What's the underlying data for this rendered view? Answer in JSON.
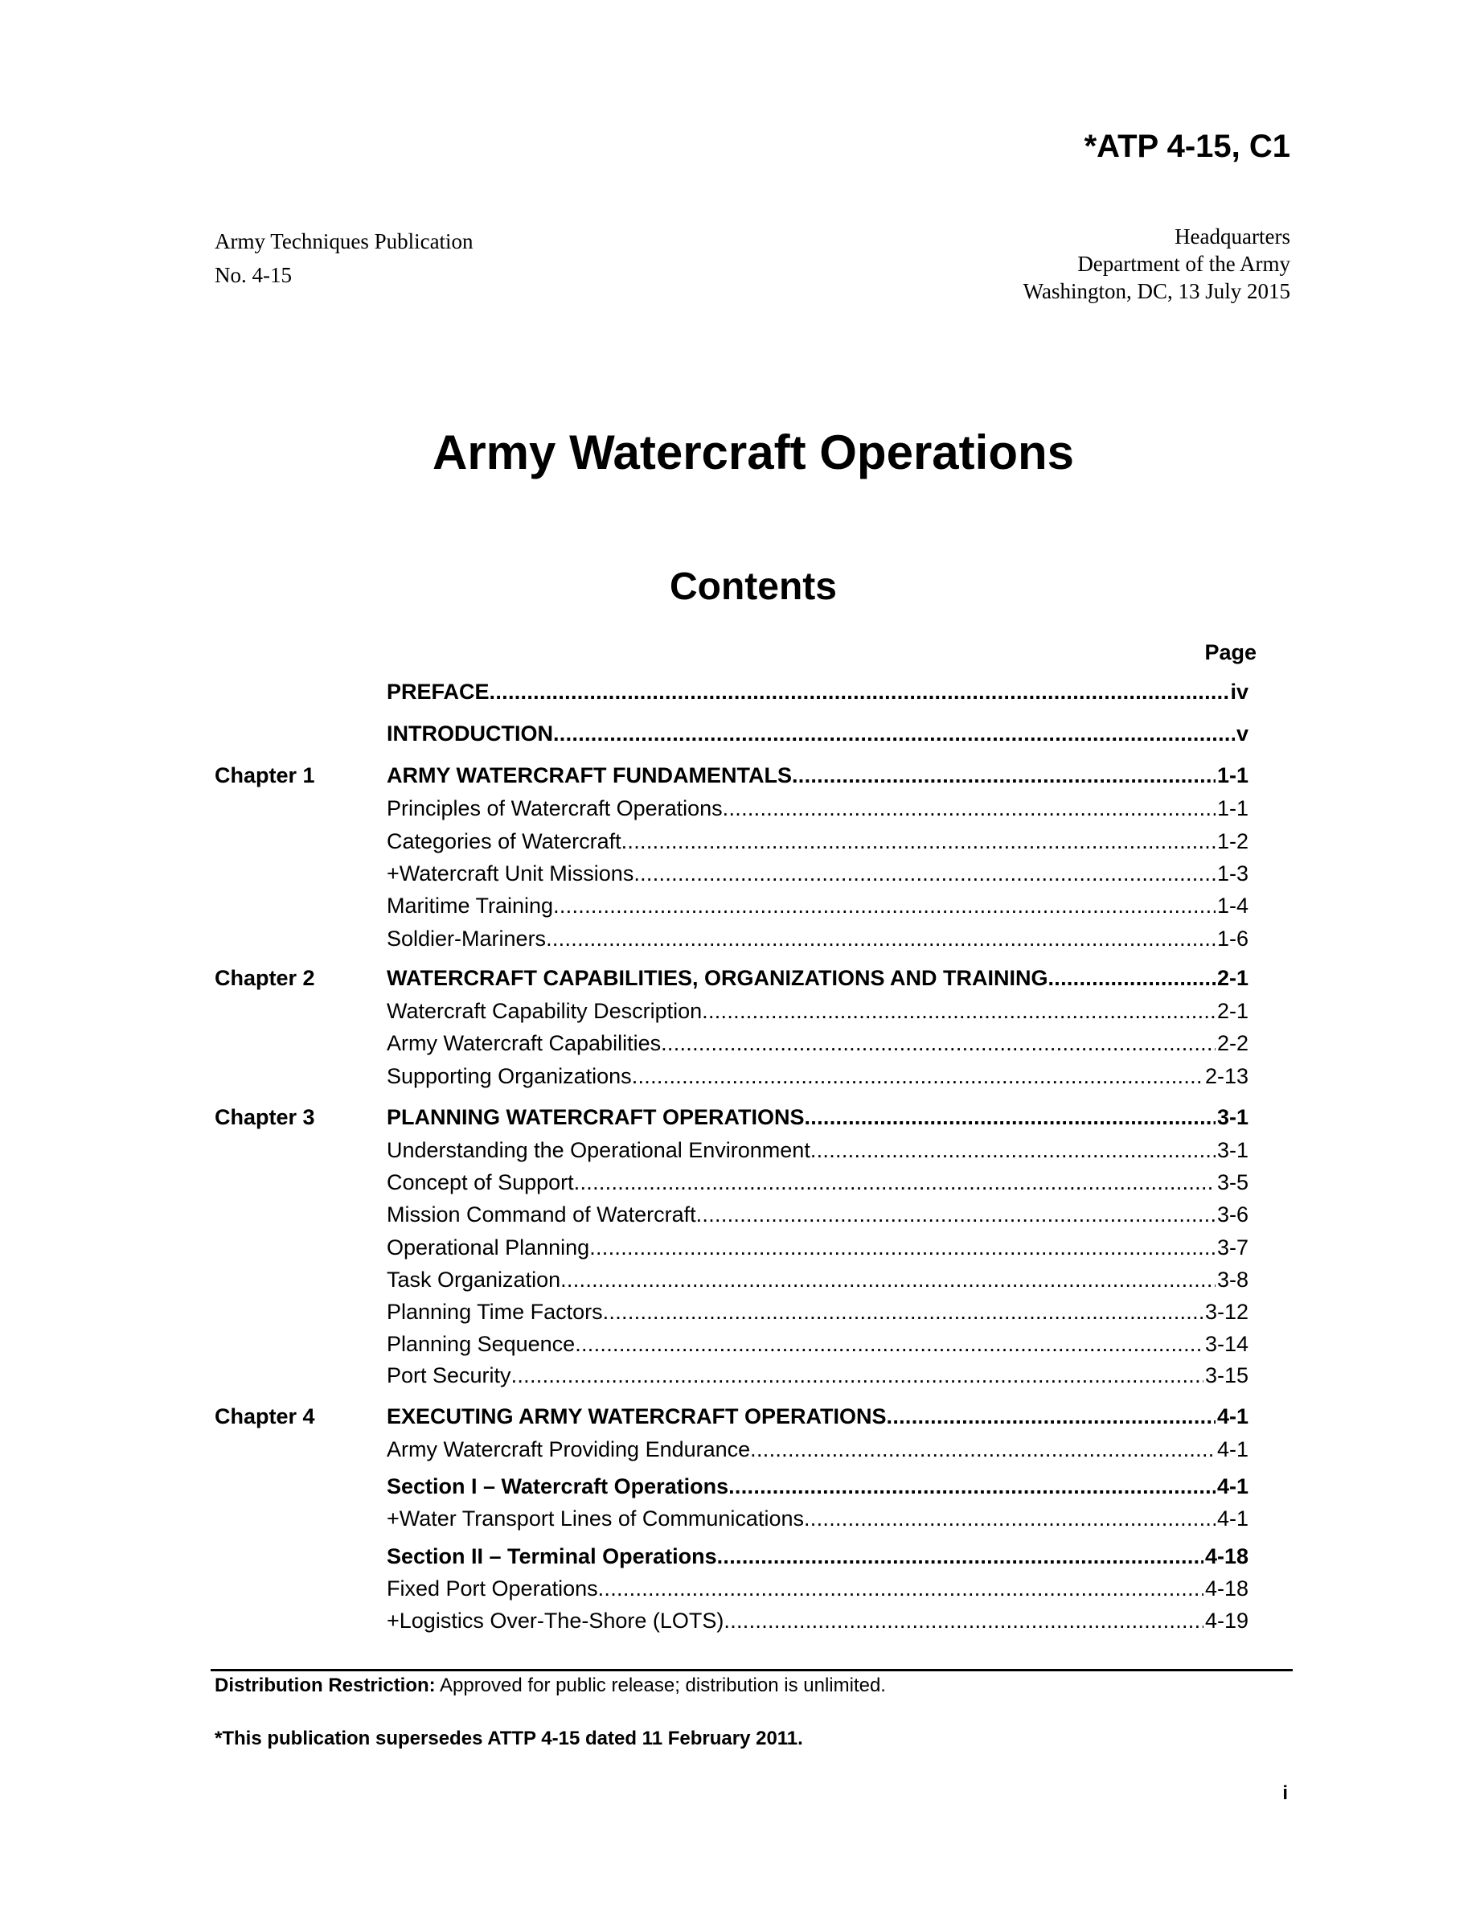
{
  "header": {
    "doc_id": "*ATP 4-15, C1",
    "left_lines": [
      "Army Techniques Publication",
      "No. 4-15"
    ],
    "right_lines": [
      "Headquarters",
      "Department of the Army",
      "Washington, DC, 13 July 2015"
    ]
  },
  "title": "Army Watercraft Operations",
  "contents_heading": "Contents",
  "page_column_label": "Page",
  "toc": [
    {
      "chapter": "",
      "title": "PREFACE",
      "page": "iv",
      "bold": true
    },
    {
      "chapter": "",
      "title": "INTRODUCTION",
      "page": "v",
      "bold": true
    },
    {
      "chapter": "Chapter 1",
      "title": "ARMY WATERCRAFT FUNDAMENTALS",
      "page": "1-1",
      "bold": true
    },
    {
      "chapter": "",
      "title": "Principles of Watercraft Operations",
      "page": "1-1",
      "bold": false
    },
    {
      "chapter": "",
      "title": "Categories of Watercraft",
      "page": "1-2",
      "bold": false
    },
    {
      "chapter": "",
      "title": "+Watercraft Unit Missions",
      "page": "1-3",
      "bold": false
    },
    {
      "chapter": "",
      "title": "Maritime Training",
      "page": "1-4",
      "bold": false
    },
    {
      "chapter": "",
      "title": "Soldier-Mariners",
      "page": "1-6",
      "bold": false
    },
    {
      "chapter": "Chapter 2",
      "title": "WATERCRAFT CAPABILITIES, ORGANIZATIONS AND TRAINING",
      "page": "2-1",
      "bold": true
    },
    {
      "chapter": "",
      "title": "Watercraft Capability Description",
      "page": "2-1",
      "bold": false
    },
    {
      "chapter": "",
      "title": "Army Watercraft Capabilities",
      "page": "2-2",
      "bold": false
    },
    {
      "chapter": "",
      "title": "Supporting Organizations",
      "page": "2-13",
      "bold": false
    },
    {
      "chapter": "Chapter 3",
      "title": "PLANNING WATERCRAFT OPERATIONS",
      "page": "3-1",
      "bold": true
    },
    {
      "chapter": "",
      "title": "Understanding the Operational Environment",
      "page": "3-1",
      "bold": false
    },
    {
      "chapter": "",
      "title": "Concept of Support",
      "page": "3-5",
      "bold": false
    },
    {
      "chapter": "",
      "title": "Mission Command of Watercraft",
      "page": "3-6",
      "bold": false
    },
    {
      "chapter": "",
      "title": "Operational Planning",
      "page": "3-7",
      "bold": false
    },
    {
      "chapter": "",
      "title": "Task Organization",
      "page": "3-8",
      "bold": false
    },
    {
      "chapter": "",
      "title": "Planning Time Factors",
      "page": "3-12",
      "bold": false
    },
    {
      "chapter": "",
      "title": "Planning Sequence",
      "page": "3-14",
      "bold": false
    },
    {
      "chapter": "",
      "title": "Port Security",
      "page": "3-15",
      "bold": false
    },
    {
      "chapter": "Chapter 4",
      "title": "EXECUTING ARMY WATERCRAFT OPERATIONS",
      "page": "4-1",
      "bold": true
    },
    {
      "chapter": "",
      "title": "Army Watercraft Providing Endurance",
      "page": "4-1",
      "bold": false
    },
    {
      "chapter": "",
      "title": "Section I – Watercraft Operations",
      "page": "4-1",
      "bold": true
    },
    {
      "chapter": "",
      "title": "+Water Transport Lines of Communications",
      "page": "4-1",
      "bold": false
    },
    {
      "chapter": "",
      "title": "Section II – Terminal Operations",
      "page": "4-18",
      "bold": true
    },
    {
      "chapter": "",
      "title": "Fixed Port Operations",
      "page": "4-18",
      "bold": false
    },
    {
      "chapter": "",
      "title": "+Logistics Over-The-Shore (LOTS)",
      "page": "4-19",
      "bold": false
    }
  ],
  "footer": {
    "distribution_label": "Distribution Restriction:",
    "distribution_text": " Approved for public release; distribution is unlimited.",
    "supersedes": "*This publication supersedes ATTP 4-15 dated 11 February 2011.",
    "page_number": "i"
  }
}
